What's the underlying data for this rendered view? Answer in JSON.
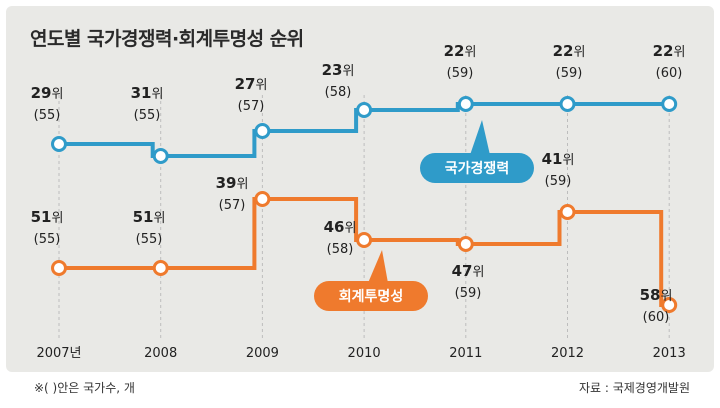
{
  "title": "연도별 국가경쟁력·회계투명성 순위",
  "footnote": "※( )안은 국가수, 개",
  "source": "자료 : 국제경영개발원",
  "colors": {
    "competitiveness": "#2f9bc9",
    "transparency": "#ef7a2d",
    "panel": "#e9e9e6",
    "gridline": "#bdbdbd"
  },
  "chart_data": {
    "type": "line",
    "step": true,
    "title": "연도별 국가경쟁력·회계투명성 순위",
    "x": [
      "2007년",
      "2008",
      "2009",
      "2010",
      "2011",
      "2012",
      "2013"
    ],
    "grid": "vertical-dashed",
    "series": [
      {
        "name": "국가경쟁력",
        "color": "#2f9bc9",
        "values": [
          29,
          31,
          27,
          23,
          22,
          22,
          22
        ],
        "countries": [
          55,
          55,
          57,
          58,
          59,
          59,
          60
        ],
        "rank_labels": [
          "29위",
          "31위",
          "27위",
          "23위",
          "22위",
          "22위",
          "22위"
        ],
        "country_labels": [
          "(55)",
          "(55)",
          "(57)",
          "(58)",
          "(59)",
          "(59)",
          "(60)"
        ]
      },
      {
        "name": "회계투명성",
        "color": "#ef7a2d",
        "values": [
          51,
          51,
          39,
          46,
          47,
          41,
          58
        ],
        "countries": [
          55,
          55,
          57,
          58,
          59,
          59,
          60
        ],
        "rank_labels": [
          "51위",
          "51위",
          "39위",
          "46위",
          "47위",
          "41위",
          "58위"
        ],
        "country_labels": [
          "(55)",
          "(55)",
          "(57)",
          "(58)",
          "(59)",
          "(59)",
          "(60)"
        ]
      }
    ]
  }
}
